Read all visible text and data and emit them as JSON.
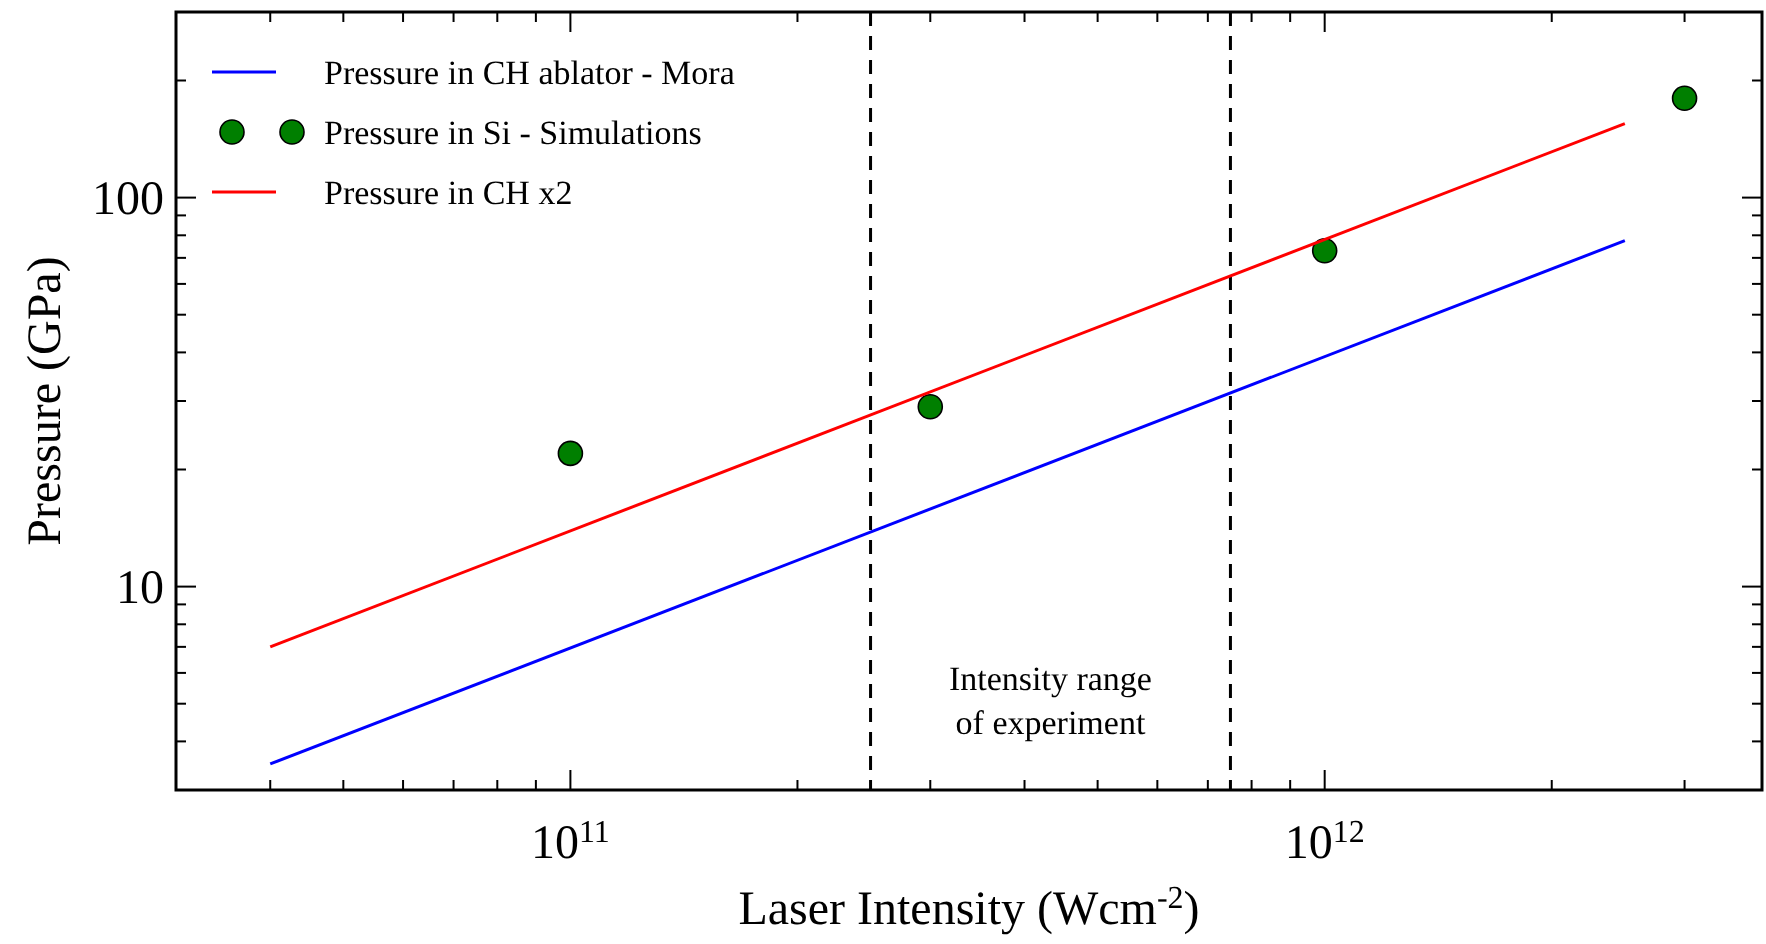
{
  "chart_data": {
    "type": "line",
    "xlabel": "Laser Intensity (Wcm$^{-2}$)",
    "ylabel": "Pressure (GPa)",
    "log": "xy",
    "xlim": [
      30000000000.0,
      3800000000000.0
    ],
    "ylim": [
      3,
      300
    ],
    "xticks": [
      {
        "value": 40000000000.0,
        "label": null
      },
      {
        "value": 50000000000.0,
        "label": null
      },
      {
        "value": 60000000000.0,
        "label": null
      },
      {
        "value": 70000000000.0,
        "label": null
      },
      {
        "value": 80000000000.0,
        "label": null
      },
      {
        "value": 90000000000.0,
        "label": null
      },
      {
        "value": 100000000000.0,
        "label": "10$^{11}$"
      },
      {
        "value": 200000000000.0,
        "label": null
      },
      {
        "value": 300000000000.0,
        "label": null
      },
      {
        "value": 400000000000.0,
        "label": null
      },
      {
        "value": 500000000000.0,
        "label": null
      },
      {
        "value": 600000000000.0,
        "label": null
      },
      {
        "value": 700000000000.0,
        "label": null
      },
      {
        "value": 800000000000.0,
        "label": null
      },
      {
        "value": 900000000000.0,
        "label": null
      },
      {
        "value": 1000000000000.0,
        "label": "10$^{12}$"
      },
      {
        "value": 2000000000000.0,
        "label": null
      },
      {
        "value": 3000000000000.0,
        "label": null
      }
    ],
    "yticks": [
      {
        "value": 4,
        "label": null
      },
      {
        "value": 5,
        "label": null
      },
      {
        "value": 6,
        "label": null
      },
      {
        "value": 7,
        "label": null
      },
      {
        "value": 8,
        "label": null
      },
      {
        "value": 9,
        "label": null
      },
      10,
      {
        "value": 20,
        "label": null
      },
      {
        "value": 30,
        "label": null
      },
      {
        "value": 40,
        "label": null
      },
      {
        "value": 50,
        "label": null
      },
      {
        "value": 60,
        "label": null
      },
      {
        "value": 70,
        "label": null
      },
      {
        "value": 80,
        "label": null
      },
      {
        "value": 90,
        "label": null
      },
      100,
      {
        "value": 200,
        "label": null
      }
    ],
    "grid": false,
    "legend": "top left",
    "series": [
      {
        "name": "Pressure in CH ablator - Mora",
        "color": "#0000ff",
        "marker": "none",
        "line_style": "solid",
        "x": [
          40000000000.0,
          2500000000000.0
        ],
        "values": [
          3.5,
          77.5
        ]
      },
      {
        "name": "Pressure in Si - Simulations",
        "type": "scatter",
        "color": "#007f00",
        "marker": "circle",
        "x": [
          100000000000.0,
          300000000000.0,
          1000000000000.0,
          3000000000000.0
        ],
        "values": [
          22,
          29,
          73,
          180
        ]
      },
      {
        "name": "Pressure in CH x2",
        "color": "#ff0000",
        "marker": "none",
        "line_style": "solid",
        "x": [
          40000000000.0,
          2500000000000.0
        ],
        "values": [
          7,
          155
        ]
      }
    ],
    "ref_lines": [
      {
        "axis": "x",
        "value": 250000000000.0,
        "color": "#000000",
        "line_style": "dashed"
      },
      {
        "axis": "x",
        "value": 750000000000.0,
        "color": "#000000",
        "line_style": "dashed"
      }
    ],
    "annotations": [
      "Intensity range\nof experiment"
    ]
  }
}
